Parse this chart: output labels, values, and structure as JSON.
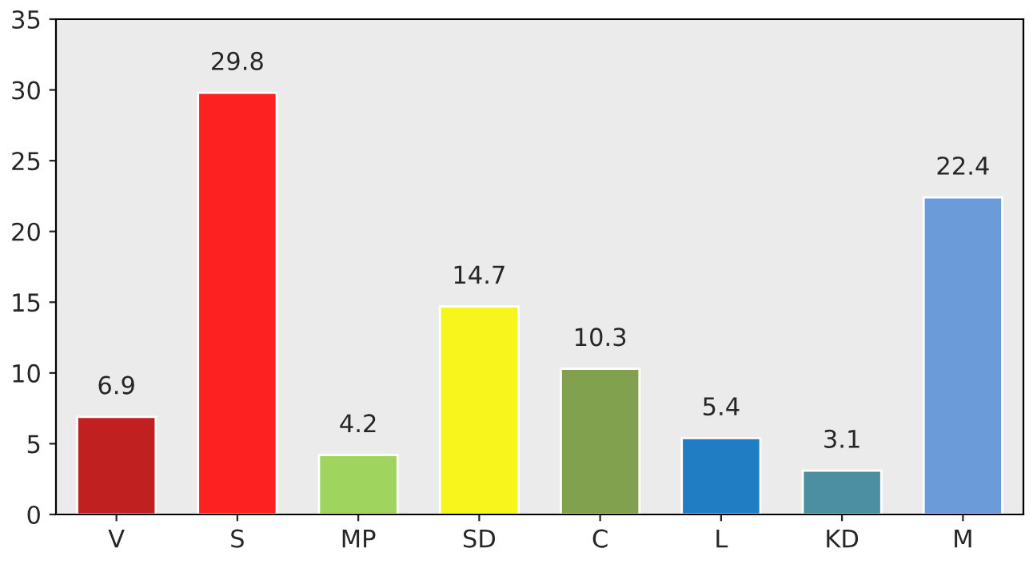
{
  "chart_data": {
    "type": "bar",
    "categories": [
      "V",
      "S",
      "MP",
      "SD",
      "C",
      "L",
      "KD",
      "M"
    ],
    "values": [
      6.9,
      29.8,
      4.2,
      14.7,
      10.3,
      5.4,
      3.1,
      22.4
    ],
    "colors": [
      "#c0201f",
      "#fe2122",
      "#9fd45f",
      "#f8f51c",
      "#81a14f",
      "#207dc3",
      "#4c8fa2",
      "#6b9bd8"
    ],
    "ylim": [
      0,
      35
    ],
    "yticks": [
      0,
      5,
      10,
      15,
      20,
      25,
      30,
      35
    ],
    "grid": false,
    "legend": false,
    "data_labels": true
  }
}
